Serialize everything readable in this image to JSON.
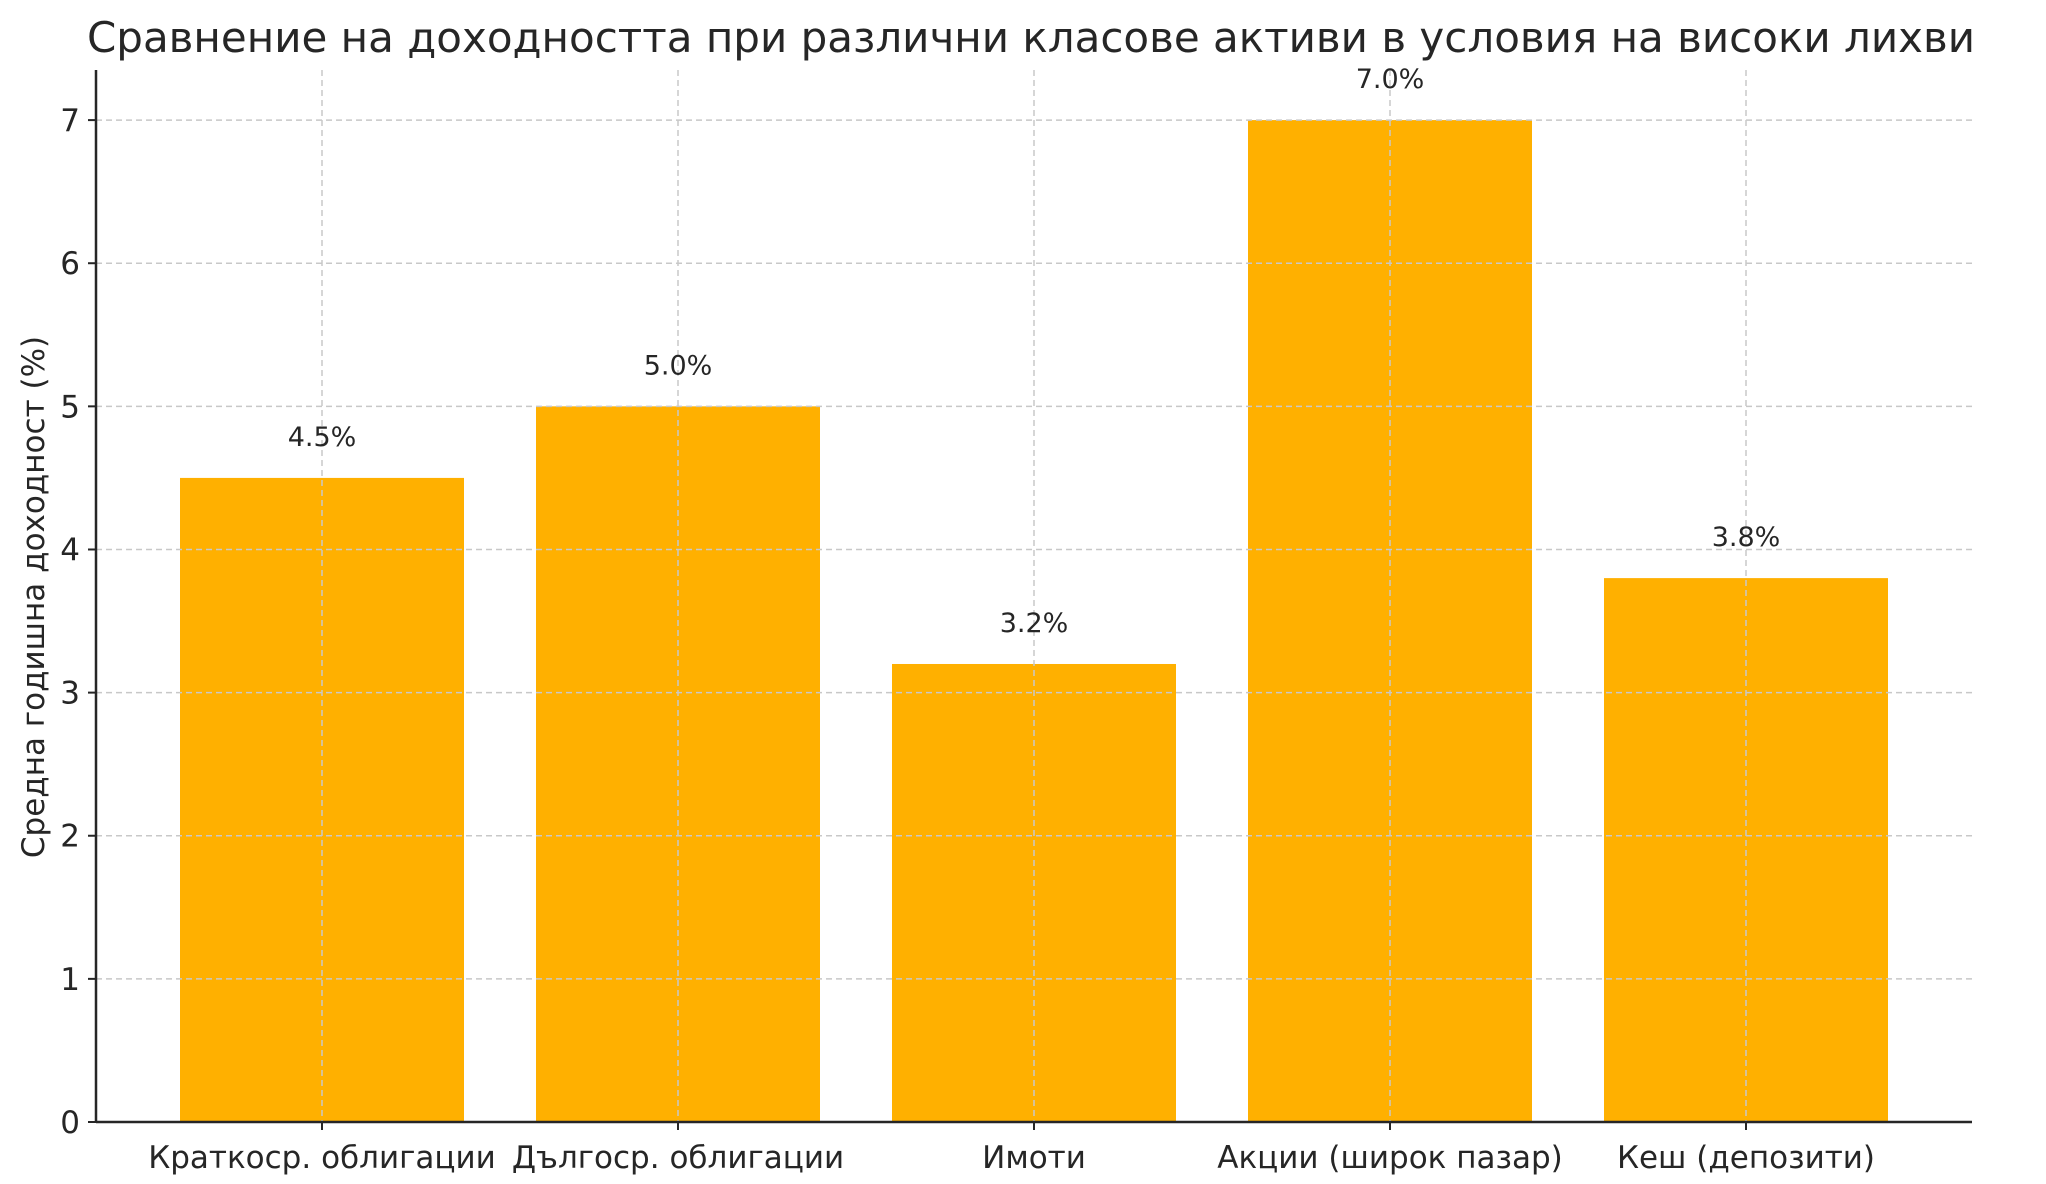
{
  "chart_data": {
    "type": "bar",
    "title": "Сравнение на доходността при различни класове активи в условия на високи лихви",
    "xlabel": "",
    "ylabel": "Средна годишна доходност (%)",
    "categories": [
      "Краткоср. облигации",
      "Дългоср. облигации",
      "Имоти",
      "Акции (широк пазар)",
      "Кеш (депозити)"
    ],
    "values": [
      4.5,
      5.0,
      3.2,
      7.0,
      3.8
    ],
    "value_labels": [
      "4.5%",
      "5.0%",
      "3.2%",
      "7.0%",
      "3.8%"
    ],
    "ylim": [
      0,
      7.35
    ],
    "yticks": [
      0,
      1,
      2,
      3,
      4,
      5,
      6,
      7
    ],
    "grid": true,
    "bar_color": "#FFB000",
    "legend": "none"
  }
}
